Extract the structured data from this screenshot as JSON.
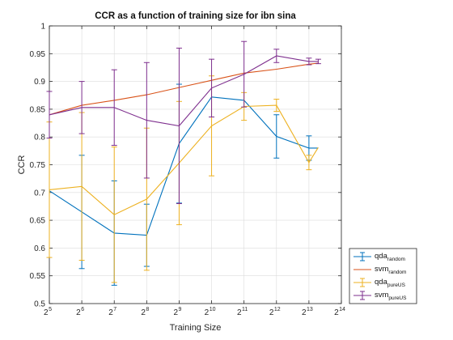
{
  "chart_data": {
    "type": "line",
    "title": "CCR as a function of training size for ibn sina",
    "xlabel": "Training Size",
    "ylabel": "CCR",
    "x_scale": "log2",
    "x_tick_base": "2",
    "x_tick_exponents": [
      "5",
      "6",
      "7",
      "8",
      "9",
      "10",
      "11",
      "12",
      "13",
      "14"
    ],
    "xlim": [
      32,
      16384
    ],
    "ylim": [
      0.5,
      1
    ],
    "y_ticks": [
      "0.5",
      "0.55",
      "0.6",
      "0.65",
      "0.7",
      "0.75",
      "0.8",
      "0.85",
      "0.9",
      "0.95",
      "1"
    ],
    "grid": true,
    "legend_position": "outside-bottom-right",
    "series": [
      {
        "label_main": "qda",
        "label_sub": "random",
        "color": "#0072BD",
        "x": [
          32,
          64,
          128,
          256,
          512,
          1024,
          2048,
          4096,
          8192,
          10000
        ],
        "y": [
          0.703,
          0.665,
          0.627,
          0.623,
          0.788,
          0.872,
          0.866,
          0.801,
          0.78,
          0.78
        ],
        "err": [
          null,
          0.102,
          0.094,
          0.056,
          0.107,
          null,
          null,
          0.039,
          0.022,
          null
        ]
      },
      {
        "label_main": "svm",
        "label_sub": "random",
        "color": "#D95319",
        "x": [
          32,
          64,
          128,
          256,
          512,
          1024,
          2048,
          4096,
          8192,
          10000
        ],
        "y": [
          0.84,
          0.857,
          0.866,
          0.876,
          0.889,
          0.902,
          0.915,
          0.922,
          0.931,
          0.933
        ],
        "err": [
          null,
          null,
          null,
          null,
          null,
          null,
          null,
          null,
          null,
          null
        ]
      },
      {
        "label_main": "qda",
        "label_sub": "pureUS",
        "color": "#EDB120",
        "x": [
          32,
          64,
          128,
          256,
          512,
          1024,
          2048,
          4096,
          8192,
          10000
        ],
        "y": [
          0.705,
          0.711,
          0.66,
          0.688,
          0.753,
          0.82,
          0.855,
          0.857,
          0.754,
          0.781
        ],
        "err": [
          0.122,
          0.133,
          0.122,
          0.128,
          0.111,
          0.09,
          0.025,
          0.011,
          0.013,
          null
        ]
      },
      {
        "label_main": "svm",
        "label_sub": "pureUS",
        "color": "#7E2F8E",
        "x": [
          32,
          64,
          128,
          256,
          512,
          1024,
          2048,
          4096,
          8192,
          10000
        ],
        "y": [
          0.84,
          0.853,
          0.853,
          0.83,
          0.82,
          0.888,
          0.913,
          0.946,
          0.936,
          0.936
        ],
        "err": [
          0.042,
          0.047,
          0.068,
          0.104,
          0.14,
          0.052,
          0.059,
          0.012,
          0.006,
          0.004
        ]
      }
    ]
  }
}
